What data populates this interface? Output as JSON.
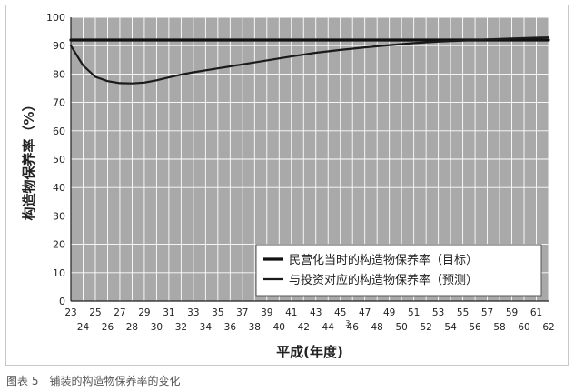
{
  "caption": "图表 5　铺装的构造物保养率的变化",
  "chart_data": {
    "type": "line",
    "title": "",
    "xlabel": "平成(年度)",
    "ylabel": "构造物保养率（%）",
    "ylim": [
      0,
      100
    ],
    "xlim": [
      23,
      62
    ],
    "yticks": [
      0,
      10,
      20,
      30,
      40,
      50,
      60,
      70,
      80,
      90,
      100
    ],
    "xticks_upper": [
      "23",
      "25",
      "27",
      "29",
      "31",
      "33",
      "35",
      "37",
      "39",
      "41",
      "43",
      "45",
      "47",
      "49",
      "51",
      "53",
      "55",
      "57",
      "59",
      "61"
    ],
    "xticks_lower": [
      "24",
      "26",
      "28",
      "30",
      "32",
      "34",
      "36",
      "38",
      "40",
      "42",
      "44",
      "46",
      "48",
      "50",
      "52",
      "54",
      "56",
      "58",
      "60",
      "62"
    ],
    "grid": true,
    "legend_position": "bottom-right",
    "background": "#a9a9a9",
    "series": [
      {
        "name": "民营化当时的构造物保养率（目标）",
        "color": "#111111",
        "x": [
          23,
          62
        ],
        "y": [
          92,
          92
        ]
      },
      {
        "name": "与投资对应的构造物保养率（预测）",
        "color": "#1a1a1a",
        "x": [
          23,
          24,
          25,
          26,
          27,
          28,
          29,
          30,
          31,
          32,
          33,
          35,
          37,
          39,
          41,
          43,
          45,
          47,
          49,
          51,
          53,
          55,
          57,
          59,
          61,
          62
        ],
        "y": [
          90,
          83,
          79,
          77.5,
          76.8,
          76.7,
          77,
          77.8,
          78.8,
          79.8,
          80.6,
          82,
          83.4,
          84.8,
          86.2,
          87.5,
          88.5,
          89.4,
          90.2,
          90.9,
          91.4,
          91.8,
          92.2,
          92.5,
          92.8,
          92.9
        ]
      }
    ],
    "annotation": "3"
  }
}
